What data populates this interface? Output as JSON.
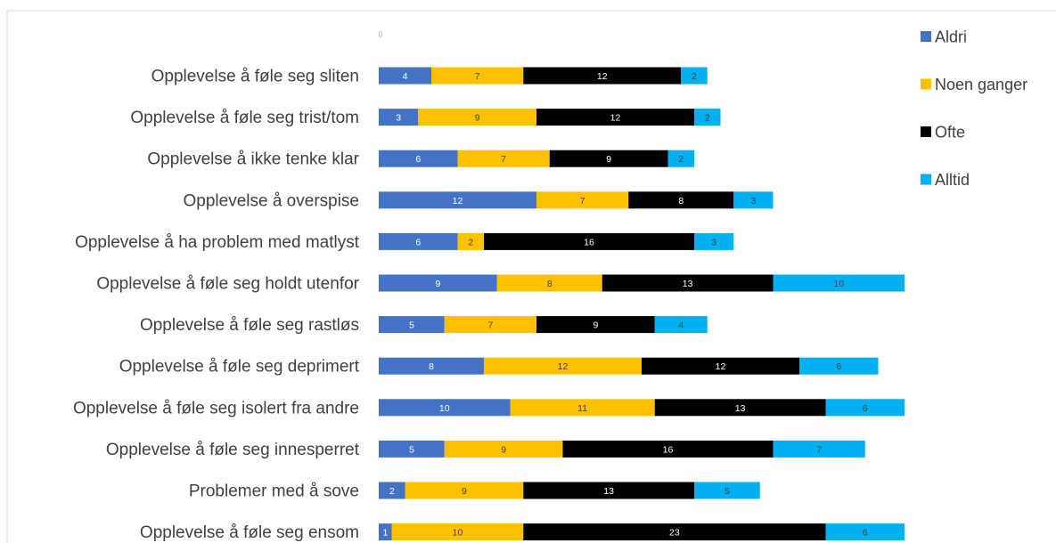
{
  "chart_data": {
    "type": "bar",
    "orientation": "horizontal",
    "stacked": true,
    "title": "",
    "xlabel": "",
    "ylabel": "",
    "xlim": [
      0,
      40
    ],
    "x_tick_labels": [
      "0"
    ],
    "grid": false,
    "legend_position": "right",
    "categories": [
      "Opplevelse å føle seg sliten",
      "Opplevelse å føle seg trist/tom",
      "Opplevelse å ikke tenke klar",
      "Opplevelse å overspise",
      "Opplevelse å ha problem med matlyst",
      "Opplevelse å føle seg holdt utenfor",
      "Opplevelse å føle seg rastløs",
      "Opplevelse å føle seg deprimert",
      "Opplevelse å føle seg isolert fra andre",
      "Opplevelse å føle seg innesperret",
      "Problemer med å sove",
      "Opplevelse å føle seg ensom"
    ],
    "series": [
      {
        "name": "Aldri",
        "color": "#4472c4",
        "label_color": "#ffffff",
        "values": [
          4,
          3,
          6,
          12,
          6,
          9,
          5,
          8,
          10,
          5,
          2,
          1
        ]
      },
      {
        "name": "Noen ganger",
        "color": "#ffc000",
        "label_color": "#404040",
        "values": [
          7,
          9,
          7,
          7,
          2,
          8,
          7,
          12,
          11,
          9,
          9,
          10
        ]
      },
      {
        "name": "Ofte",
        "color": "#000000",
        "label_color": "#ffffff",
        "values": [
          12,
          12,
          9,
          8,
          16,
          13,
          9,
          12,
          13,
          16,
          13,
          23
        ]
      },
      {
        "name": "Alltid",
        "color": "#00b0f0",
        "label_color": "#404040",
        "values": [
          2,
          2,
          2,
          3,
          3,
          10,
          4,
          6,
          6,
          7,
          5,
          6
        ]
      }
    ]
  }
}
